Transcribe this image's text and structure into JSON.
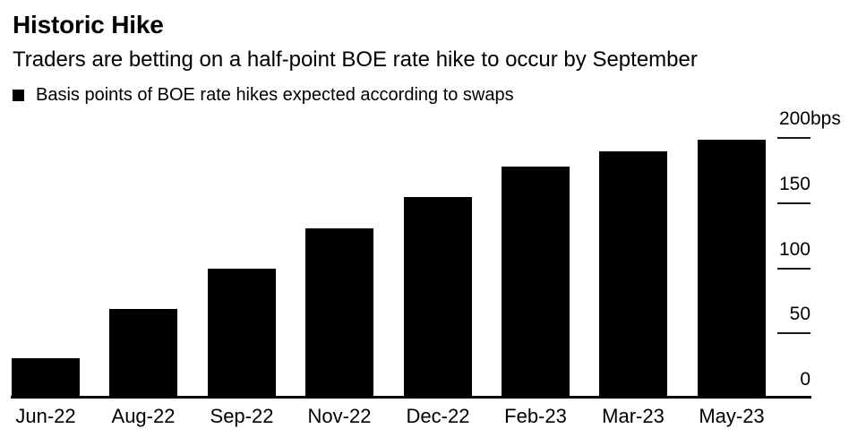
{
  "header": {
    "title": "Historic Hike",
    "subtitle": "Traders are betting on a half-point BOE rate hike to occur by September"
  },
  "legend": {
    "label": "Basis points of BOE rate hikes expected according to swaps",
    "swatch_color": "#000000"
  },
  "chart_data": {
    "type": "bar",
    "title": "Historic Hike",
    "subtitle": "Traders are betting on a half-point BOE rate hike to occur by September",
    "series_name": "Basis points of BOE rate hikes expected according to swaps",
    "categories": [
      "Jun-22",
      "Aug-22",
      "Sep-22",
      "Nov-22",
      "Dec-22",
      "Feb-23",
      "Mar-23",
      "May-23"
    ],
    "values": [
      30,
      68,
      99,
      130,
      154,
      177,
      189,
      198
    ],
    "xlabel": "",
    "ylabel": "bps",
    "ylim": [
      0,
      200
    ],
    "yticks": [
      0,
      50,
      100,
      150,
      200
    ],
    "ytick_unit_suffix": "bps",
    "grid": false,
    "legend_position": "top-left",
    "bar_color": "#000000",
    "background_color": "#ffffff",
    "text_color": "#000000"
  }
}
